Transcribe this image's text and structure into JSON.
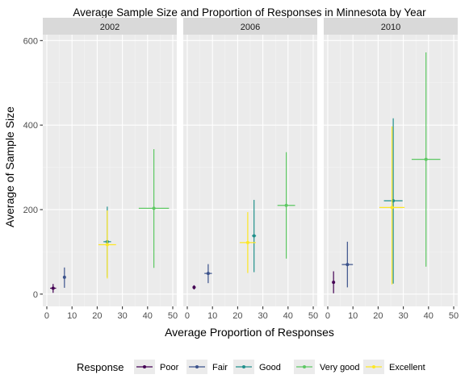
{
  "chart_data": {
    "type": "scatter",
    "title": "Average Sample Size and Proportion of Responses in Minnesota by Year",
    "xlabel": "Average Proportion of Responses",
    "ylabel": "Average of Sample Size",
    "xlim": [
      0,
      50
    ],
    "ylim": [
      0,
      600
    ],
    "x_ticks": [
      0,
      10,
      20,
      30,
      40,
      50
    ],
    "x_tick_labels": [
      "0",
      "10",
      "20",
      "30",
      "40",
      "50"
    ],
    "y_ticks": [
      0,
      200,
      400,
      600
    ],
    "y_tick_labels": [
      "0",
      "200",
      "400",
      "600"
    ],
    "grid": true,
    "legend": {
      "title": "Response",
      "position": "bottom",
      "entries": [
        {
          "name": "Poor",
          "color": "#440154"
        },
        {
          "name": "Fair",
          "color": "#3b528b"
        },
        {
          "name": "Good",
          "color": "#21908c"
        },
        {
          "name": "Very good",
          "color": "#5dc863"
        },
        {
          "name": "Excellent",
          "color": "#fde725"
        }
      ]
    },
    "facets": [
      {
        "label": "2002",
        "points": [
          {
            "response": "Poor",
            "x": 2.5,
            "y": 14,
            "xerr": [
              1.3,
              3.7
            ],
            "yerr": [
              3,
              24
            ]
          },
          {
            "response": "Fair",
            "x": 7.0,
            "y": 40,
            "xerr": [
              6.5,
              7.5
            ],
            "yerr": [
              15,
              63
            ]
          },
          {
            "response": "Good",
            "x": 24.0,
            "y": 124,
            "xerr": [
              22.5,
              25.5
            ],
            "yerr": [
              40,
              207
            ]
          },
          {
            "response": "Very good",
            "x": 42.5,
            "y": 203,
            "xerr": [
              36.5,
              48.5
            ],
            "yerr": [
              62,
              343
            ]
          },
          {
            "response": "Excellent",
            "x": 24.0,
            "y": 117,
            "xerr": [
              20.5,
              27.5
            ],
            "yerr": [
              37,
              198
            ]
          }
        ]
      },
      {
        "label": "2006",
        "points": [
          {
            "response": "Poor",
            "x": 2.7,
            "y": 16,
            "xerr": [
              2.1,
              3.3
            ],
            "yerr": [
              11,
              21
            ]
          },
          {
            "response": "Fair",
            "x": 8.3,
            "y": 49,
            "xerr": [
              6.8,
              9.8
            ],
            "yerr": [
              26,
              71
            ]
          },
          {
            "response": "Good",
            "x": 26.5,
            "y": 138,
            "xerr": [
              25.7,
              27.3
            ],
            "yerr": [
              52,
              223
            ]
          },
          {
            "response": "Very good",
            "x": 39.3,
            "y": 210,
            "xerr": [
              35.8,
              42.8
            ],
            "yerr": [
              84,
              336
            ]
          },
          {
            "response": "Excellent",
            "x": 24.0,
            "y": 122,
            "xerr": [
              20.8,
              27.2
            ],
            "yerr": [
              50,
              194
            ]
          }
        ]
      },
      {
        "label": "2010",
        "points": [
          {
            "response": "Poor",
            "x": 2.3,
            "y": 28,
            "xerr": [
              1.9,
              2.7
            ],
            "yerr": [
              2,
              54
            ]
          },
          {
            "response": "Fair",
            "x": 7.8,
            "y": 70,
            "xerr": [
              5.6,
              10.0
            ],
            "yerr": [
              16,
              124
            ]
          },
          {
            "response": "Good",
            "x": 26.0,
            "y": 221,
            "xerr": [
              22.3,
              29.7
            ],
            "yerr": [
              25,
              416
            ]
          },
          {
            "response": "Very good",
            "x": 39.0,
            "y": 319,
            "xerr": [
              33.3,
              44.7
            ],
            "yerr": [
              65,
              572
            ]
          },
          {
            "response": "Excellent",
            "x": 25.5,
            "y": 205,
            "xerr": [
              20.5,
              30.5
            ],
            "yerr": [
              23,
              397
            ]
          }
        ]
      }
    ]
  }
}
